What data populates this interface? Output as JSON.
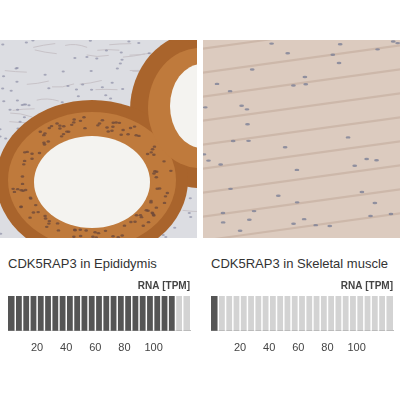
{
  "panels": [
    {
      "caption": "CDK5RAP3 in Epididymis"
    },
    {
      "caption": "CDK5RAP3 in Skeletal muscle"
    }
  ],
  "chart_data": [
    {
      "type": "bar",
      "title": "RNA [TPM]",
      "orientation": "horizontal",
      "categories": [
        null
      ],
      "values": [
        115
      ],
      "color": "#555555",
      "xlim": [
        0,
        125
      ],
      "xticks": [
        20,
        40,
        60,
        80,
        100
      ],
      "grid": false
    },
    {
      "type": "bar",
      "title": "RNA [TPM]",
      "orientation": "horizontal",
      "categories": [
        null
      ],
      "values": [
        5
      ],
      "color": "#555555",
      "xlim": [
        0,
        125
      ],
      "xticks": [
        20,
        40,
        60,
        80,
        100
      ],
      "grid": false
    }
  ]
}
